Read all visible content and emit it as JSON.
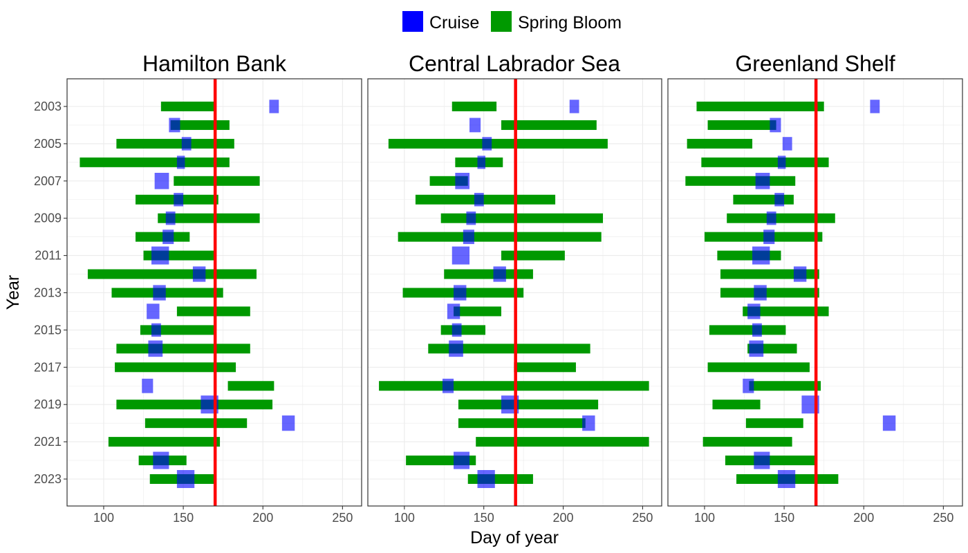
{
  "chart_data": {
    "type": "range-bar",
    "xlabel": "Day of year",
    "ylabel": "Year",
    "xlim": [
      77,
      262
    ],
    "xticks": [
      100,
      150,
      200,
      250
    ],
    "years": [
      2003,
      2004,
      2005,
      2006,
      2007,
      2008,
      2009,
      2010,
      2011,
      2012,
      2013,
      2014,
      2015,
      2016,
      2017,
      2018,
      2019,
      2020,
      2021,
      2022,
      2023
    ],
    "yticks": [
      2003,
      2005,
      2007,
      2009,
      2011,
      2013,
      2015,
      2017,
      2019,
      2021,
      2023
    ],
    "reference_line": {
      "x": 170,
      "color": "#ff0000"
    },
    "legend": {
      "placement": "top-center",
      "items": [
        {
          "label": "Cruise",
          "color": "#0000ff"
        },
        {
          "label": "Spring Bloom",
          "color": "#009900"
        }
      ]
    },
    "panels": [
      {
        "title": "Hamilton Bank",
        "bloom": [
          [
            2003,
            136,
            170
          ],
          [
            2004,
            142,
            179
          ],
          [
            2005,
            108,
            182
          ],
          [
            2006,
            85,
            179
          ],
          [
            2007,
            144,
            198
          ],
          [
            2008,
            120,
            172
          ],
          [
            2009,
            134,
            198
          ],
          [
            2010,
            120,
            154
          ],
          [
            2011,
            125,
            170
          ],
          [
            2012,
            90,
            196
          ],
          [
            2013,
            105,
            175
          ],
          [
            2014,
            146,
            192
          ],
          [
            2015,
            123,
            170
          ],
          [
            2016,
            108,
            192
          ],
          [
            2017,
            107,
            183
          ],
          [
            2018,
            178,
            207
          ],
          [
            2019,
            108,
            206
          ],
          [
            2020,
            126,
            190
          ],
          [
            2021,
            103,
            173
          ],
          [
            2022,
            122,
            152
          ],
          [
            2023,
            129,
            170
          ]
        ],
        "cruise": [
          [
            2003,
            204,
            210
          ],
          [
            2004,
            141,
            148
          ],
          [
            2005,
            149,
            155
          ],
          [
            2006,
            146,
            151
          ],
          [
            2007,
            132,
            141
          ],
          [
            2008,
            144,
            150
          ],
          [
            2009,
            139,
            145
          ],
          [
            2010,
            137,
            144
          ],
          [
            2011,
            130,
            141
          ],
          [
            2012,
            156,
            164
          ],
          [
            2013,
            131,
            139
          ],
          [
            2014,
            127,
            135
          ],
          [
            2015,
            130,
            136
          ],
          [
            2016,
            128,
            137
          ],
          [
            2018,
            124,
            131
          ],
          [
            2019,
            161,
            172
          ],
          [
            2020,
            212,
            220
          ],
          [
            2022,
            131,
            141
          ],
          [
            2023,
            146,
            157
          ]
        ]
      },
      {
        "title": "Central Labrador Sea",
        "bloom": [
          [
            2003,
            130,
            158
          ],
          [
            2004,
            161,
            221
          ],
          [
            2005,
            90,
            228
          ],
          [
            2006,
            132,
            162
          ],
          [
            2007,
            116,
            140
          ],
          [
            2008,
            107,
            195
          ],
          [
            2009,
            123,
            225
          ],
          [
            2010,
            96,
            224
          ],
          [
            2011,
            161,
            201
          ],
          [
            2012,
            125,
            181
          ],
          [
            2013,
            99,
            175
          ],
          [
            2014,
            131,
            161
          ],
          [
            2015,
            123,
            151
          ],
          [
            2016,
            115,
            217
          ],
          [
            2017,
            169,
            208
          ],
          [
            2018,
            84,
            254
          ],
          [
            2019,
            134,
            222
          ],
          [
            2020,
            134,
            214
          ],
          [
            2021,
            145,
            254
          ],
          [
            2022,
            101,
            145
          ],
          [
            2023,
            140,
            181
          ]
        ],
        "cruise": [
          [
            2003,
            204,
            210
          ],
          [
            2004,
            141,
            148
          ],
          [
            2005,
            149,
            155
          ],
          [
            2006,
            146,
            151
          ],
          [
            2007,
            132,
            141
          ],
          [
            2008,
            144,
            150
          ],
          [
            2009,
            139,
            145
          ],
          [
            2010,
            137,
            144
          ],
          [
            2011,
            130,
            141
          ],
          [
            2012,
            156,
            164
          ],
          [
            2013,
            131,
            139
          ],
          [
            2014,
            127,
            135
          ],
          [
            2015,
            130,
            136
          ],
          [
            2016,
            128,
            137
          ],
          [
            2018,
            124,
            131
          ],
          [
            2019,
            161,
            172
          ],
          [
            2020,
            212,
            220
          ],
          [
            2022,
            131,
            141
          ],
          [
            2023,
            146,
            157
          ]
        ]
      },
      {
        "title": "Greenland Shelf",
        "bloom": [
          [
            2003,
            95,
            175
          ],
          [
            2004,
            102,
            145
          ],
          [
            2005,
            89,
            130
          ],
          [
            2006,
            98,
            178
          ],
          [
            2007,
            88,
            157
          ],
          [
            2008,
            118,
            156
          ],
          [
            2009,
            114,
            182
          ],
          [
            2010,
            100,
            174
          ],
          [
            2011,
            108,
            148
          ],
          [
            2012,
            110,
            172
          ],
          [
            2013,
            110,
            172
          ],
          [
            2014,
            124,
            178
          ],
          [
            2015,
            103,
            151
          ],
          [
            2016,
            127,
            158
          ],
          [
            2017,
            102,
            166
          ],
          [
            2018,
            128,
            173
          ],
          [
            2019,
            105,
            135
          ],
          [
            2020,
            126,
            162
          ],
          [
            2021,
            99,
            155
          ],
          [
            2022,
            113,
            170
          ],
          [
            2023,
            120,
            184
          ]
        ],
        "cruise": [
          [
            2003,
            204,
            210
          ],
          [
            2004,
            141,
            148
          ],
          [
            2005,
            149,
            155
          ],
          [
            2006,
            146,
            151
          ],
          [
            2007,
            132,
            141
          ],
          [
            2008,
            144,
            150
          ],
          [
            2009,
            139,
            145
          ],
          [
            2010,
            137,
            144
          ],
          [
            2011,
            130,
            141
          ],
          [
            2012,
            156,
            164
          ],
          [
            2013,
            131,
            139
          ],
          [
            2014,
            127,
            135
          ],
          [
            2015,
            130,
            136
          ],
          [
            2016,
            128,
            137
          ],
          [
            2018,
            124,
            131
          ],
          [
            2019,
            161,
            172
          ],
          [
            2020,
            212,
            220
          ],
          [
            2022,
            131,
            141
          ],
          [
            2023,
            146,
            157
          ]
        ]
      }
    ]
  }
}
